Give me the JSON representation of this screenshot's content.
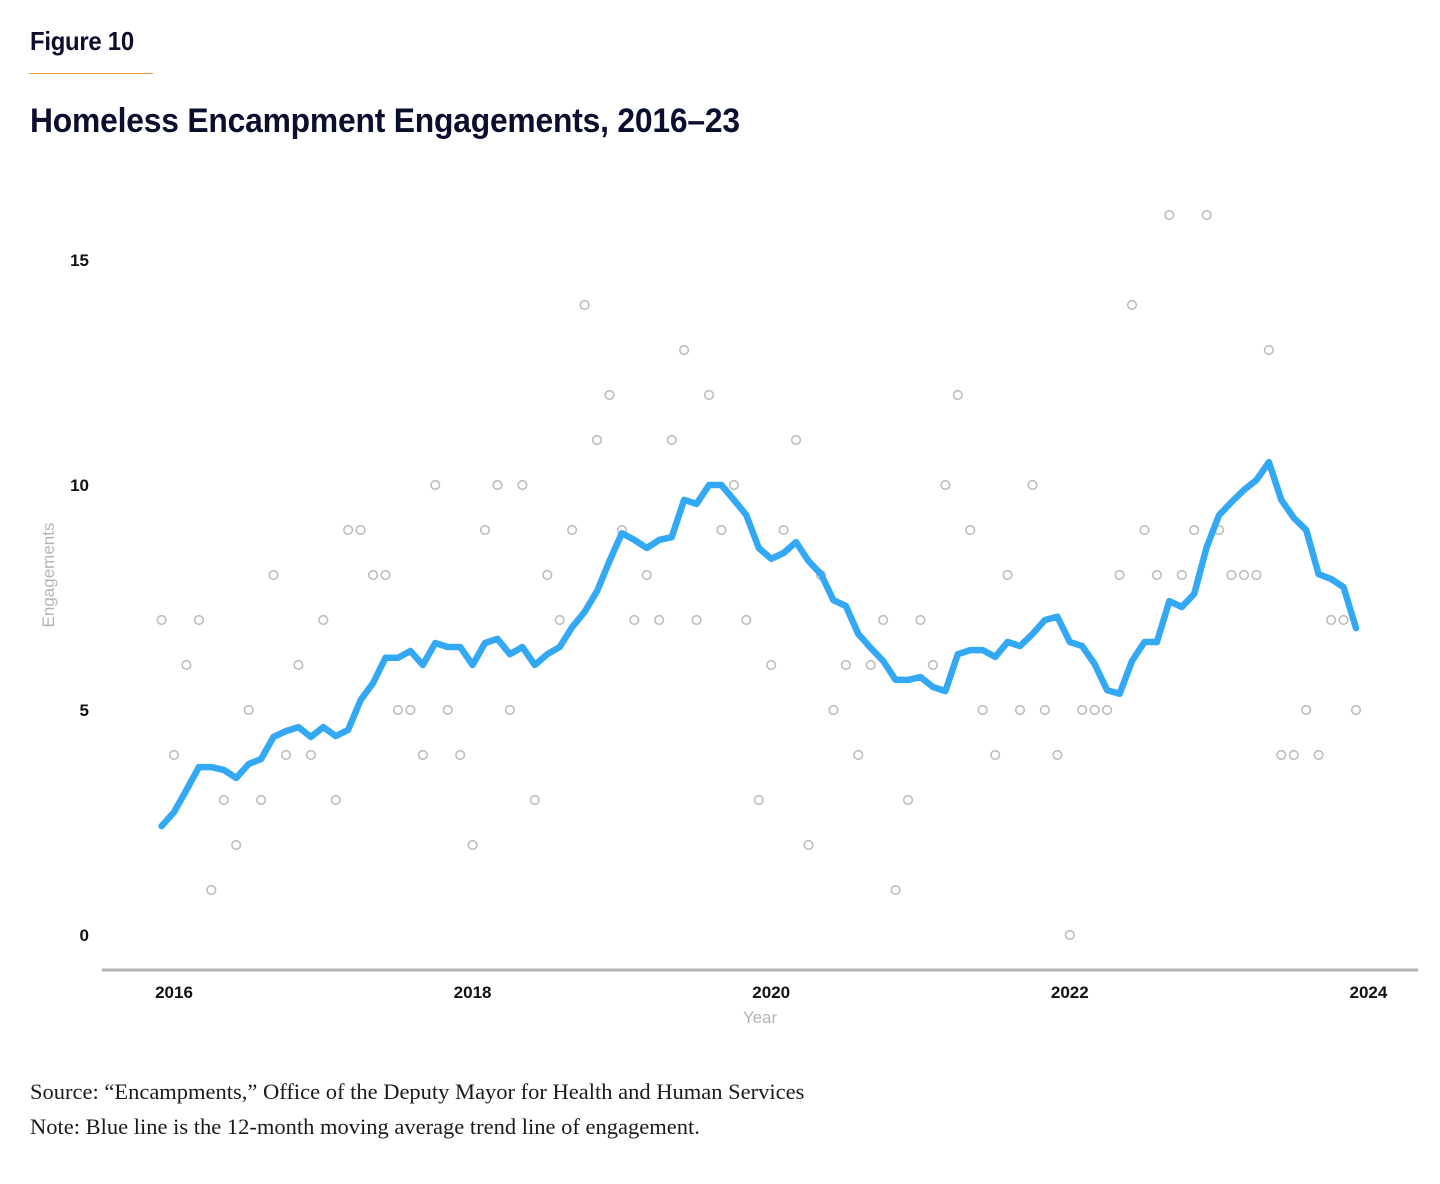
{
  "figure_label": "Figure 10",
  "title": "Homeless Encampment Engagements, 2016–23",
  "source": "Source: “Encampments,” Office of the Deputy Mayor for Health and Human Services",
  "note": "Note: Blue line is the 12-month moving average trend line of engagement.",
  "colors": {
    "trend_line": "#33a8f5",
    "points": "#bdbdbd",
    "axis_line": "#b4b6bb",
    "title_text": "#0b0f2e",
    "figure_rule": "#e89a3c"
  },
  "chart_data": {
    "type": "scatter",
    "title": "Homeless Encampment Engagements, 2016–23",
    "xlabel": "Year",
    "ylabel": "Engagements",
    "x_start": "2015-12",
    "x_interval": "month",
    "xlim": [
      2015.83,
      2024.17
    ],
    "ylim": [
      -0.8,
      16.5
    ],
    "x_ticks": [
      2016,
      2018,
      2020,
      2022,
      2024
    ],
    "y_ticks": [
      0,
      5,
      10,
      15
    ],
    "grid": false,
    "legend": "none",
    "series": [
      {
        "name": "Monthly engagements",
        "kind": "scatter",
        "values": [
          7,
          4,
          6,
          7,
          1,
          3,
          2,
          5,
          3,
          8,
          4,
          6,
          4,
          7,
          3,
          9,
          9,
          8,
          8,
          5,
          5,
          4,
          10,
          5,
          4,
          2,
          9,
          10,
          5,
          10,
          3,
          8,
          7,
          9,
          14,
          11,
          12,
          9,
          7,
          8,
          7,
          11,
          13,
          7,
          12,
          9,
          10,
          7,
          3,
          6,
          9,
          11,
          2,
          8,
          5,
          6,
          4,
          6,
          7,
          1,
          3,
          7,
          6,
          10,
          12,
          9,
          5,
          4,
          8,
          5,
          10,
          5,
          4,
          0,
          5,
          5,
          5,
          8,
          14,
          9,
          8,
          16,
          8,
          9,
          16,
          9,
          8,
          8,
          8,
          13,
          4,
          4,
          5,
          4,
          7,
          7,
          5
        ]
      },
      {
        "name": "12-month moving average",
        "kind": "line",
        "values": [
          2.42,
          2.73,
          3.22,
          3.73,
          3.73,
          3.67,
          3.49,
          3.8,
          3.91,
          4.4,
          4.53,
          4.62,
          4.4,
          4.62,
          4.42,
          4.56,
          5.22,
          5.6,
          6.16,
          6.16,
          6.31,
          6.0,
          6.49,
          6.4,
          6.4,
          6.0,
          6.49,
          6.58,
          6.24,
          6.4,
          6.0,
          6.24,
          6.4,
          6.84,
          7.18,
          7.64,
          8.31,
          8.93,
          8.78,
          8.6,
          8.78,
          8.84,
          9.67,
          9.58,
          10.0,
          10.0,
          9.67,
          9.33,
          8.6,
          8.36,
          8.49,
          8.73,
          8.31,
          8.02,
          7.44,
          7.31,
          6.69,
          6.38,
          6.09,
          5.67,
          5.67,
          5.73,
          5.51,
          5.42,
          6.24,
          6.33,
          6.33,
          6.18,
          6.51,
          6.42,
          6.69,
          7.0,
          7.07,
          6.51,
          6.42,
          6.02,
          5.44,
          5.36,
          6.09,
          6.51,
          6.51,
          7.42,
          7.29,
          7.58,
          8.62,
          9.33,
          9.62,
          9.89,
          10.11,
          10.51,
          9.67,
          9.27,
          9.0,
          8.02,
          7.91,
          7.73,
          6.82
        ]
      }
    ]
  }
}
